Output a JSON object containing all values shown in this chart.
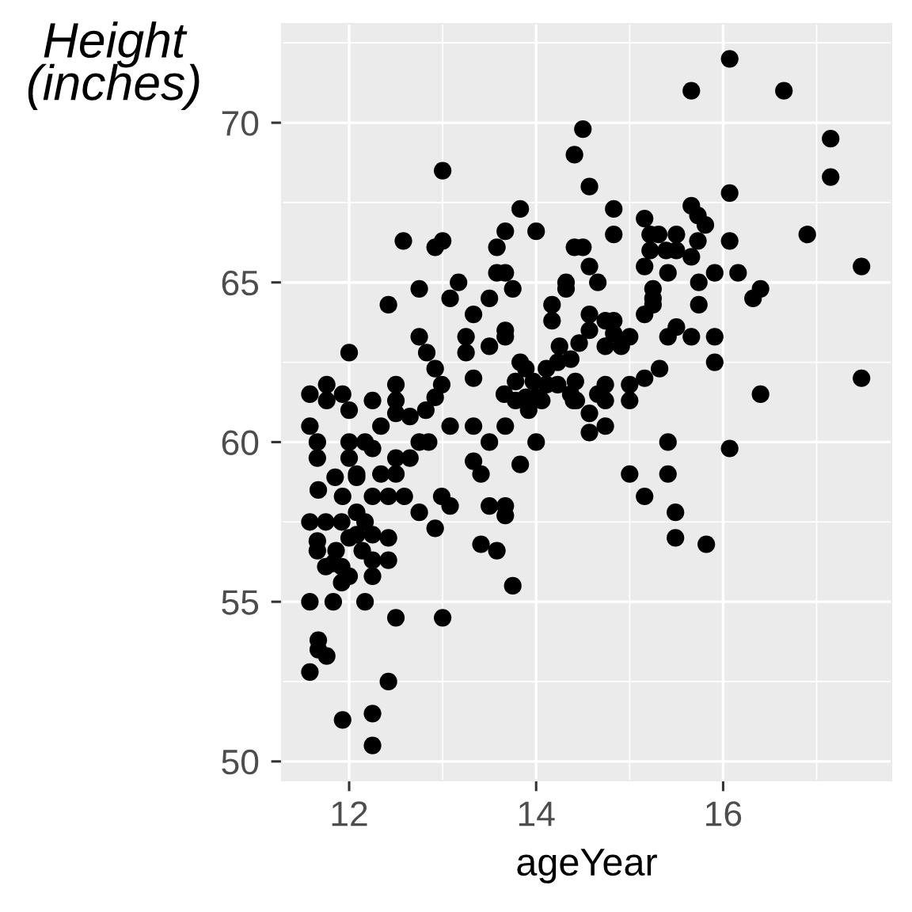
{
  "chart_data": {
    "type": "scatter",
    "xlabel": "ageYear",
    "ylabel": "Height\n(inches)",
    "x": [
      14.5,
      14.41,
      14.57,
      13.0,
      13.83,
      12.58,
      13.0,
      12.92,
      13.67,
      14.0,
      13.58,
      14.41,
      14.5,
      13.58,
      13.67,
      13.75,
      13.17,
      12.75,
      12.42,
      13.08,
      13.5,
      13.33,
      14.32,
      14.32,
      14.17,
      14.17,
      12.75,
      13.25,
      13.67,
      13.67,
      12.0,
      12.83,
      13.25,
      13.5,
      14.25,
      12.92,
      13.33,
      13.83,
      16.07,
      15.66,
      16.65,
      17.15,
      17.15,
      16.07,
      14.83,
      14.83,
      15.16,
      15.66,
      15.73,
      15.81,
      15.22,
      15.31,
      15.5,
      15.22,
      15.39,
      15.5,
      15.73,
      16.07,
      15.66,
      16.9,
      17.48,
      14.57,
      14.66,
      15.16,
      15.41,
      15.74,
      15.91,
      16.16,
      16.4,
      16.32,
      15.25,
      15.25,
      15.25,
      15.16,
      15.74,
      14.57,
      14.57,
      14.74,
      14.83,
      14.83,
      15.0,
      14.91,
      14.74,
      14.46,
      15.41,
      15.5,
      15.66,
      15.91,
      15.91,
      17.48,
      16.4,
      15.32,
      15.16,
      15.0,
      14.74,
      14.66,
      15.0,
      14.43,
      14.74,
      14.57,
      14.57,
      14.74,
      15.41,
      16.07,
      15.0,
      15.41,
      15.16,
      15.49,
      15.49,
      15.82,
      13.66,
      13.78,
      13.89,
      13.97,
      14.11,
      14.23,
      14.37,
      14.42,
      13.89,
      14.06,
      14.23,
      14.37,
      13.78,
      13.92,
      14.0,
      14.4,
      14.11,
      11.58,
      11.76,
      11.76,
      11.93,
      12.0,
      12.25,
      12.5,
      12.5,
      12.92,
      12.99,
      12.82,
      12.65,
      12.5,
      12.34,
      11.58,
      13.08,
      13.33,
      13.67,
      14.0,
      13.5,
      11.66,
      12.0,
      12.17,
      12.25,
      11.66,
      12.0,
      12.08,
      12.34,
      12.5,
      12.5,
      12.65,
      12.75,
      12.85,
      11.85,
      11.67,
      11.93,
      12.08,
      12.25,
      12.42,
      12.59,
      12.75,
      12.99,
      13.08,
      13.33,
      13.41,
      13.83,
      13.5,
      13.67,
      13.67,
      12.92,
      11.58,
      11.75,
      11.92,
      12.08,
      12.17,
      11.66,
      11.66,
      11.86,
      12.0,
      12.08,
      12.25,
      12.42,
      12.14,
      12.25,
      12.42,
      11.75,
      11.92,
      12.0,
      12.25,
      11.92,
      11.83,
      13.41,
      13.58,
      13.75,
      11.58,
      11.83,
      12.17,
      12.5,
      13.0,
      11.67,
      11.67,
      11.76,
      11.58,
      12.42,
      11.93,
      12.25,
      12.25
    ],
    "values": [
      69.8,
      69.0,
      68.0,
      68.5,
      67.3,
      66.3,
      66.3,
      66.1,
      66.6,
      66.6,
      66.1,
      66.1,
      66.1,
      65.3,
      65.3,
      64.8,
      65.0,
      64.8,
      64.3,
      64.5,
      64.5,
      64.0,
      65.0,
      64.8,
      64.3,
      63.8,
      63.3,
      63.3,
      63.5,
      63.3,
      62.8,
      62.8,
      62.8,
      63.0,
      63.0,
      62.3,
      62.0,
      62.5,
      72.0,
      71.0,
      71.0,
      69.5,
      68.3,
      67.8,
      67.3,
      66.5,
      67.0,
      67.4,
      67.1,
      66.8,
      66.5,
      66.5,
      66.5,
      66.0,
      66.0,
      66.0,
      66.3,
      66.3,
      65.8,
      66.5,
      65.5,
      65.5,
      65.0,
      65.5,
      65.3,
      65.0,
      65.3,
      65.3,
      64.8,
      64.5,
      64.8,
      64.5,
      64.3,
      64.0,
      64.3,
      64.0,
      63.5,
      63.8,
      63.8,
      63.4,
      63.3,
      63.0,
      63.0,
      63.1,
      63.3,
      63.6,
      63.3,
      63.3,
      62.5,
      62.0,
      61.5,
      62.3,
      62.0,
      61.8,
      61.8,
      61.5,
      61.3,
      61.3,
      61.3,
      60.9,
      60.3,
      60.5,
      60.0,
      59.8,
      59.0,
      59.0,
      58.3,
      57.8,
      57.0,
      56.8,
      61.5,
      61.9,
      62.3,
      61.9,
      62.3,
      61.8,
      61.5,
      61.9,
      61.4,
      61.3,
      62.5,
      62.6,
      61.3,
      61.0,
      61.4,
      61.3,
      61.8,
      61.5,
      61.8,
      61.3,
      61.5,
      61.0,
      61.3,
      61.8,
      61.3,
      61.4,
      61.8,
      61.0,
      60.8,
      60.9,
      60.5,
      60.5,
      60.5,
      60.5,
      60.5,
      60.0,
      60.0,
      60.0,
      60.0,
      60.0,
      59.8,
      59.5,
      59.5,
      59.0,
      59.0,
      59.0,
      59.5,
      59.5,
      60.0,
      60.0,
      58.9,
      58.5,
      58.3,
      58.9,
      58.3,
      58.3,
      58.3,
      57.8,
      58.3,
      58.0,
      59.4,
      59.0,
      59.3,
      58.0,
      58.0,
      57.7,
      57.3,
      57.5,
      57.5,
      57.5,
      57.8,
      57.5,
      56.9,
      56.6,
      56.6,
      57.0,
      57.1,
      57.1,
      57.0,
      56.6,
      56.3,
      56.3,
      56.1,
      56.1,
      55.8,
      55.8,
      55.6,
      56.2,
      56.8,
      56.6,
      55.5,
      55.0,
      55.0,
      55.0,
      54.5,
      54.5,
      53.8,
      53.5,
      53.3,
      52.8,
      52.5,
      51.3,
      51.5,
      50.5
    ],
    "color": "#000000",
    "marker": "circle",
    "xlim": [
      11.28,
      17.8
    ],
    "ylim": [
      49.4,
      73.1
    ],
    "xticks": [
      12,
      14,
      16
    ],
    "yticks": [
      50,
      55,
      60,
      65,
      70
    ],
    "grid": true
  }
}
